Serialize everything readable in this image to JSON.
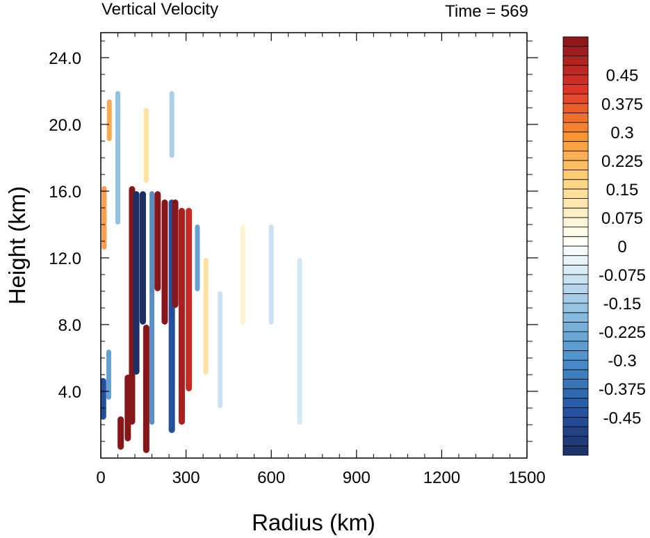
{
  "chart_data": {
    "type": "heatmap",
    "title": "Vertical Velocity",
    "subtitle": "Time = 569",
    "xlabel": "Radius (km)",
    "ylabel": "Height (km)",
    "xlim": [
      0,
      1500
    ],
    "ylim": [
      0,
      25.5
    ],
    "xticks": [
      0,
      300,
      600,
      900,
      1200,
      1500
    ],
    "xtick_labels": [
      "0",
      "300",
      "600",
      "900",
      "1200",
      "1500"
    ],
    "yticks": [
      4,
      8,
      12,
      16,
      20,
      24
    ],
    "ytick_labels": [
      "4.0",
      "8.0",
      "12.0",
      "16.0",
      "20.0",
      "24.0"
    ],
    "grid": false,
    "colorbar": {
      "levels": [
        -0.55,
        -0.525,
        -0.5,
        -0.475,
        -0.45,
        -0.425,
        -0.4,
        -0.375,
        -0.35,
        -0.325,
        -0.3,
        -0.275,
        -0.25,
        -0.225,
        -0.2,
        -0.175,
        -0.15,
        -0.125,
        -0.1,
        -0.075,
        -0.05,
        -0.025,
        0,
        0.025,
        0.05,
        0.075,
        0.1,
        0.125,
        0.15,
        0.175,
        0.2,
        0.225,
        0.25,
        0.275,
        0.3,
        0.325,
        0.35,
        0.375,
        0.4,
        0.425,
        0.45,
        0.475,
        0.5,
        0.525,
        0.55
      ],
      "labels": [
        "0.45",
        "0.375",
        "0.3",
        "0.225",
        "0.15",
        "0.075",
        "0",
        "-0.075",
        "-0.15",
        "-0.225",
        "-0.3",
        "-0.375",
        "-0.45"
      ],
      "label_values": [
        0.45,
        0.375,
        0.3,
        0.225,
        0.15,
        0.075,
        0,
        -0.075,
        -0.15,
        -0.225,
        -0.3,
        -0.375,
        -0.45
      ]
    },
    "streaks": [
      {
        "x": 12,
        "y0": 12.5,
        "y1": 16.3,
        "w": 0.3
      },
      {
        "x": 8,
        "y0": 2.3,
        "y1": 4.8,
        "w": -0.45
      },
      {
        "x": 30,
        "y0": 19.0,
        "y1": 21.5,
        "w": 0.28
      },
      {
        "x": 28,
        "y0": 3.5,
        "y1": 6.5,
        "w": -0.3
      },
      {
        "x": 70,
        "y0": 0.5,
        "y1": 2.5,
        "w": 0.55
      },
      {
        "x": 95,
        "y0": 1.0,
        "y1": 5.0,
        "w": 0.55
      },
      {
        "x": 110,
        "y0": 2.0,
        "y1": 16.3,
        "w": 0.55
      },
      {
        "x": 125,
        "y0": 5.0,
        "y1": 16.0,
        "w": -0.55
      },
      {
        "x": 148,
        "y0": 8.0,
        "y1": 16.0,
        "w": -0.55
      },
      {
        "x": 160,
        "y0": 0.3,
        "y1": 8.0,
        "w": 0.55
      },
      {
        "x": 180,
        "y0": 2.0,
        "y1": 16.0,
        "w": -0.35
      },
      {
        "x": 200,
        "y0": 10.0,
        "y1": 16.0,
        "w": 0.55
      },
      {
        "x": 225,
        "y0": 8.0,
        "y1": 15.5,
        "w": 0.55
      },
      {
        "x": 250,
        "y0": 1.5,
        "y1": 15.5,
        "w": -0.45
      },
      {
        "x": 262,
        "y0": 9.0,
        "y1": 15.5,
        "w": 0.55
      },
      {
        "x": 285,
        "y0": 2.0,
        "y1": 15.0,
        "w": 0.5
      },
      {
        "x": 310,
        "y0": 4.0,
        "y1": 15.0,
        "w": 0.45
      },
      {
        "x": 340,
        "y0": 10.0,
        "y1": 14.0,
        "w": -0.3
      },
      {
        "x": 370,
        "y0": 5.0,
        "y1": 12.0,
        "w": 0.15
      },
      {
        "x": 420,
        "y0": 3.0,
        "y1": 10.0,
        "w": -0.1
      },
      {
        "x": 500,
        "y0": 8.0,
        "y1": 14.0,
        "w": 0.08
      },
      {
        "x": 600,
        "y0": 8.0,
        "y1": 14.0,
        "w": -0.1
      },
      {
        "x": 700,
        "y0": 2.0,
        "y1": 12.0,
        "w": -0.08
      },
      {
        "x": 60,
        "y0": 14.0,
        "y1": 22.0,
        "w": -0.2
      },
      {
        "x": 160,
        "y0": 16.5,
        "y1": 21.0,
        "w": 0.15
      },
      {
        "x": 250,
        "y0": 18.0,
        "y1": 22.0,
        "w": -0.15
      }
    ]
  }
}
